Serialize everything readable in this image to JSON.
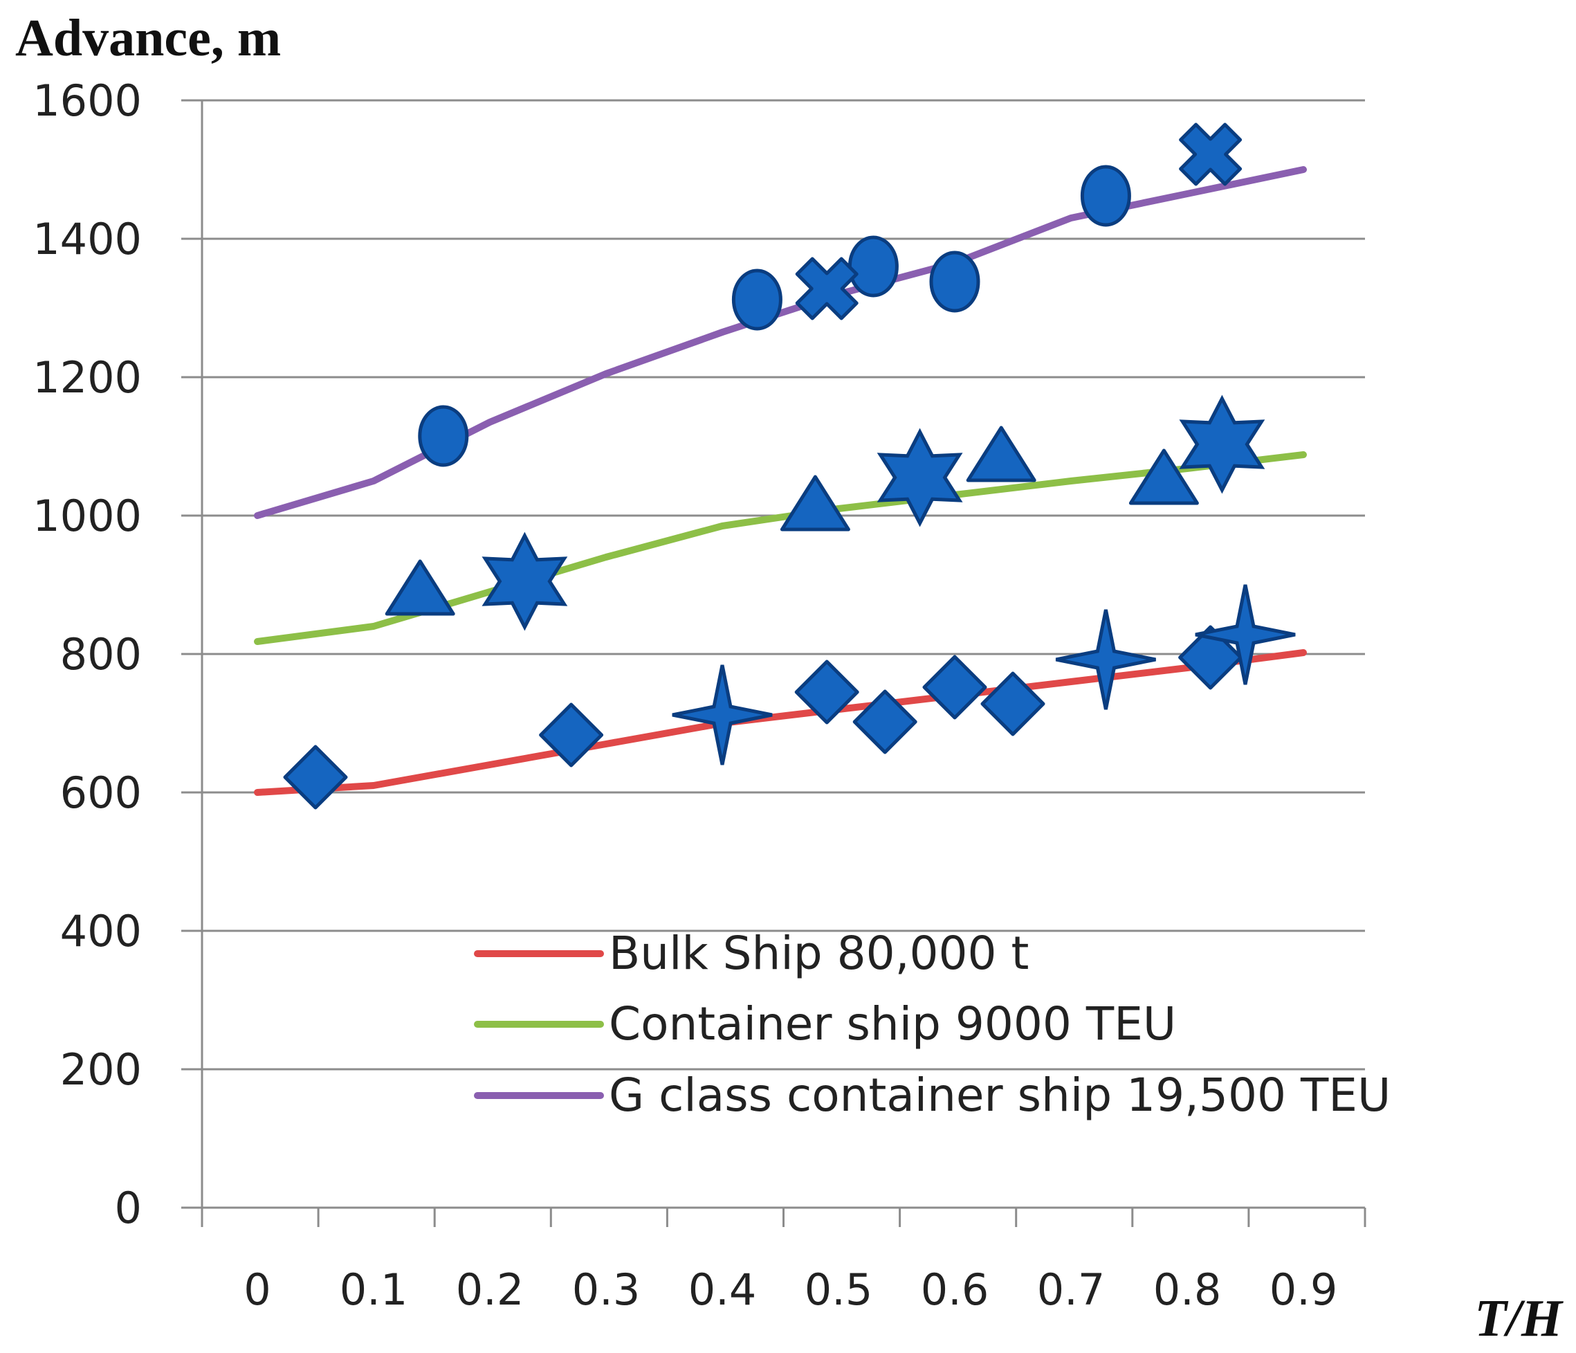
{
  "chart_data": {
    "type": "line",
    "title": "",
    "ylabel": "Advance, m",
    "xlabel": "T/H",
    "ylim": [
      0,
      1600
    ],
    "xlim": [
      0,
      0.9
    ],
    "yticks": [
      0,
      200,
      400,
      600,
      800,
      1000,
      1200,
      1400,
      1600
    ],
    "xtick_labels": [
      "0",
      "0.1",
      "0.2",
      "0.3",
      "0.4",
      "0.5",
      "0.6",
      "0.7",
      "0.8",
      "0.9"
    ],
    "grid": true,
    "legend_position": "lower-right",
    "series": [
      {
        "name": "Bulk Ship 80,000 t",
        "color": "#e04848",
        "x": [
          0,
          0.1,
          0.2,
          0.3,
          0.4,
          0.5,
          0.6,
          0.7,
          0.8,
          0.9
        ],
        "y": [
          600,
          610,
          640,
          670,
          700,
          720,
          740,
          760,
          780,
          802
        ]
      },
      {
        "name": "Container ship 9000 TEU",
        "color": "#8dbf47",
        "x": [
          0,
          0.1,
          0.2,
          0.3,
          0.4,
          0.5,
          0.6,
          0.7,
          0.8,
          0.9
        ],
        "y": [
          818,
          840,
          890,
          940,
          985,
          1010,
          1030,
          1050,
          1068,
          1088
        ]
      },
      {
        "name": "G class container ship 19,500 TEU",
        "color": "#8a5fb0",
        "x": [
          0,
          0.1,
          0.2,
          0.3,
          0.4,
          0.5,
          0.6,
          0.7,
          0.8,
          0.9
        ],
        "y": [
          1000,
          1050,
          1135,
          1205,
          1265,
          1320,
          1365,
          1430,
          1465,
          1500
        ]
      }
    ],
    "scatter_points": [
      {
        "shape": "diamond",
        "x": 0.05,
        "y": 622
      },
      {
        "shape": "diamond",
        "x": 0.27,
        "y": 683
      },
      {
        "shape": "diamond",
        "x": 0.49,
        "y": 745
      },
      {
        "shape": "diamond",
        "x": 0.54,
        "y": 702
      },
      {
        "shape": "diamond",
        "x": 0.6,
        "y": 752
      },
      {
        "shape": "diamond",
        "x": 0.65,
        "y": 728
      },
      {
        "shape": "diamond",
        "x": 0.82,
        "y": 795
      },
      {
        "shape": "star4",
        "x": 0.4,
        "y": 712
      },
      {
        "shape": "star4",
        "x": 0.73,
        "y": 792
      },
      {
        "shape": "star4",
        "x": 0.85,
        "y": 828
      },
      {
        "shape": "triangle",
        "x": 0.14,
        "y": 890
      },
      {
        "shape": "triangle",
        "x": 0.48,
        "y": 1012
      },
      {
        "shape": "triangle",
        "x": 0.64,
        "y": 1083
      },
      {
        "shape": "triangle",
        "x": 0.78,
        "y": 1050
      },
      {
        "shape": "star6",
        "x": 0.23,
        "y": 905
      },
      {
        "shape": "star6",
        "x": 0.57,
        "y": 1055
      },
      {
        "shape": "star6",
        "x": 0.83,
        "y": 1103
      },
      {
        "shape": "ellipse",
        "x": 0.16,
        "y": 1115
      },
      {
        "shape": "ellipse",
        "x": 0.43,
        "y": 1312
      },
      {
        "shape": "ellipse",
        "x": 0.53,
        "y": 1360
      },
      {
        "shape": "ellipse",
        "x": 0.6,
        "y": 1338
      },
      {
        "shape": "ellipse",
        "x": 0.73,
        "y": 1462
      },
      {
        "shape": "cross",
        "x": 0.49,
        "y": 1328
      },
      {
        "shape": "cross",
        "x": 0.82,
        "y": 1522
      }
    ]
  }
}
